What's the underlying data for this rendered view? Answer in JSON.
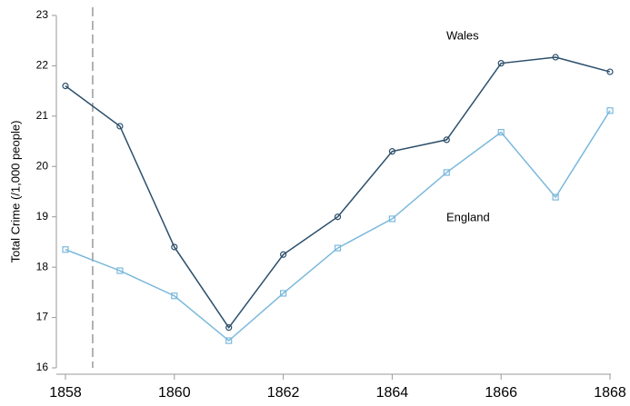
{
  "chart_data": {
    "type": "line",
    "y_label": "Total Crime (/1,000 people)",
    "x": [
      1858,
      1859,
      1860,
      1861,
      1862,
      1863,
      1864,
      1865,
      1866,
      1867,
      1868
    ],
    "series": [
      {
        "name": "Wales",
        "color": "#2c4f6b",
        "marker": "circle",
        "values": [
          21.6,
          20.8,
          18.4,
          16.8,
          18.25,
          19.0,
          20.3,
          20.53,
          22.05,
          22.17,
          21.88
        ]
      },
      {
        "name": "England",
        "color": "#7ab8dc",
        "marker": "square",
        "values": [
          18.35,
          17.93,
          17.43,
          16.54,
          17.48,
          18.38,
          18.96,
          19.88,
          20.68,
          19.39,
          21.11
        ]
      }
    ],
    "xlim": [
      1858,
      1868
    ],
    "xticks": [
      1858,
      1860,
      1862,
      1864,
      1866,
      1868
    ],
    "ylim": [
      16,
      23
    ],
    "yticks": [
      16,
      17,
      18,
      19,
      20,
      21,
      22,
      23
    ],
    "reference_line_x": 1858.5,
    "grid": false
  }
}
